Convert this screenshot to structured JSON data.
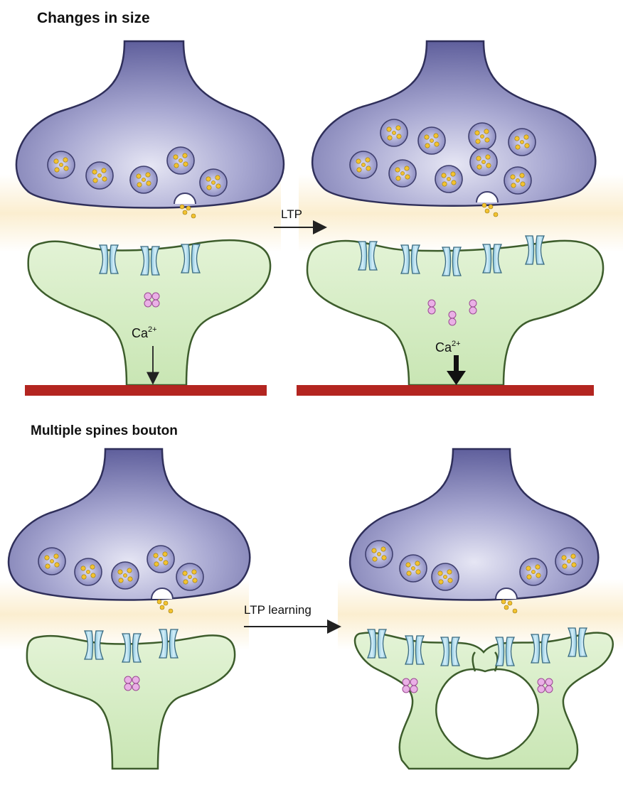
{
  "panels": {
    "top": {
      "title": "Changes in size",
      "arrow_label": "LTP",
      "calcium_base": "Ca",
      "calcium_charge": "2+"
    },
    "bottom": {
      "title": "Multiple spines bouton",
      "arrow_label": "LTP learning"
    }
  },
  "colors": {
    "presynaptic": "#6a6aa6",
    "postsynaptic": "#d6ecc4",
    "receptor": "#a8d8ec",
    "vesicle_dot": "#f2c230",
    "calcium_particle": "#e7a8e0",
    "cleft_glow": "#fbeed0",
    "highlight_bar": "#b32520"
  }
}
